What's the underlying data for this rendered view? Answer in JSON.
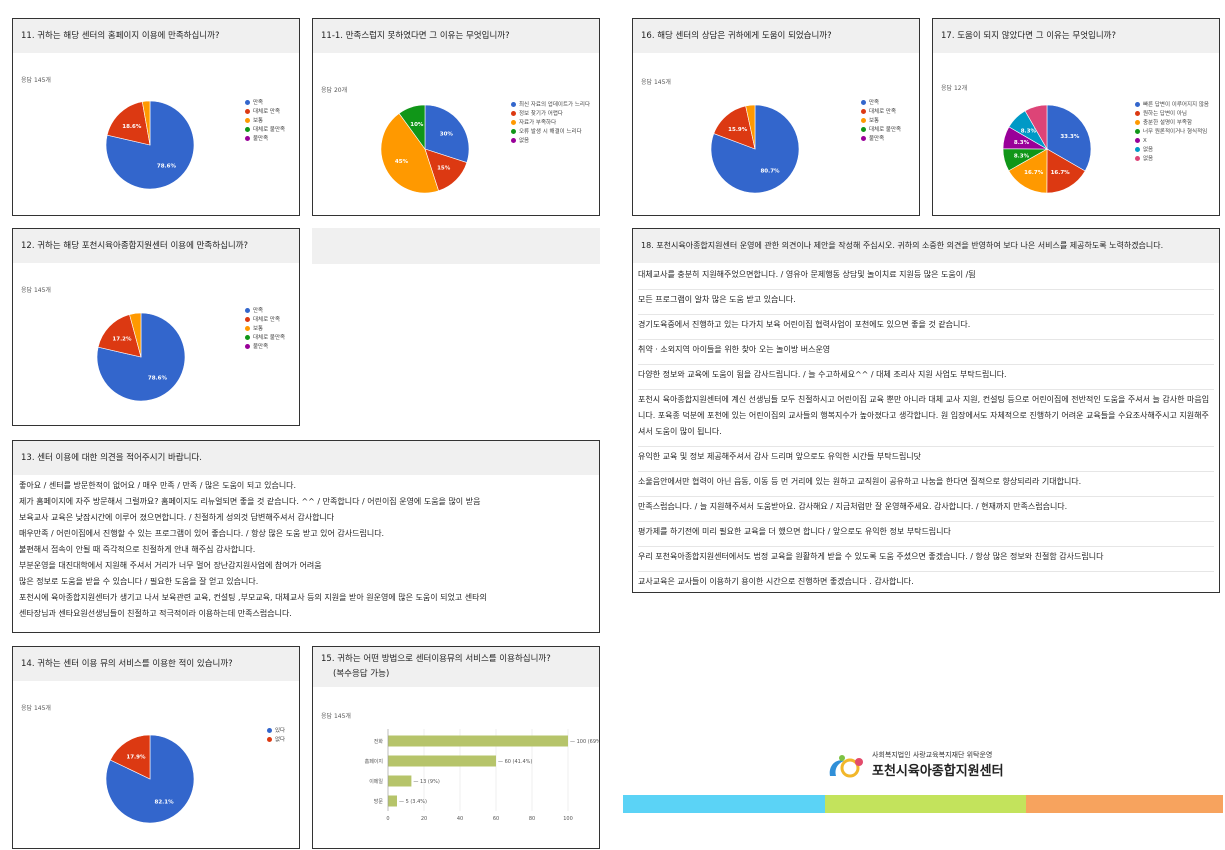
{
  "q11": {
    "title": "11. 귀하는 해당 센터의 홈페이지 이용에 만족하십니까?",
    "responses": "응답 145개",
    "legend": [
      "만족",
      "대체로 만족",
      "보통",
      "대체로 불만족",
      "불만족"
    ],
    "labels": [
      "78.6%",
      "18.6%"
    ]
  },
  "q11_1": {
    "title": "11-1. 만족스럽지 못하였다면 그 이유는 무엇입니까?",
    "responses": "응답 20개",
    "legend": [
      "최신 자료의 업데이트가 느리다",
      "정보 찾기가 어렵다",
      "자료가 부족하다",
      "오류 발생 시 해결이 느리다",
      "없음"
    ],
    "labels": [
      "30%",
      "15%",
      "45%",
      "10%"
    ]
  },
  "q16": {
    "title": "16. 해당 센터의 상담은 귀하에게 도움이 되었습니까?",
    "responses": "응답 145개",
    "legend": [
      "만족",
      "대체로 만족",
      "보통",
      "대체로 불만족",
      "불만족"
    ],
    "labels": [
      "80.7%",
      "15.9%"
    ]
  },
  "q17": {
    "title": "17. 도움이 되지 않았다면 그 이유는 무엇입니까?",
    "responses": "응답 12개",
    "legend": [
      "빠른 답변이 이루어지지 않음",
      "원하는 답변이 아님",
      "충분한 설명이 부족함",
      "너무 원론적이거나 형식적임",
      "X",
      "없음",
      "없음"
    ],
    "labels": [
      "33.3%",
      "16.7%",
      "16.7%",
      "8.3%",
      "8.3%",
      "8.3%"
    ]
  },
  "q12": {
    "title": "12. 귀하는 해당 포천시육아종합지원센터 이용에 만족하십니까?",
    "responses": "응답 145개",
    "legend": [
      "만족",
      "대체로 만족",
      "보통",
      "대체로 불만족",
      "불만족"
    ],
    "labels": [
      "78.6%",
      "17.2%"
    ]
  },
  "q13": {
    "title": "13. 센터 이용에 대한 의견을 적어주시기 바랍니다.",
    "lines": [
      "좋아요 / 센터를 방문한적이 없어요 / 매우 만족 / 만족 / 많은 도움이 되고 있습니다.",
      "제가 홈페이지에 자주 방문해서 그럴까요? 홈페이지도 리뉴얼되면 좋을 것 같습니다. ^^ / 만족합니다 / 어린이집 운영에 도움을 많이 받음",
      "보육교사 교육은 낮잠시간에 이루어 졌으면합니다. / 친절하게 성의것 답변해주셔서 감사합니다",
      "매우만족 / 어린이집에서 진행할 수 있는 프로그램이 있어 좋습니다. / 항상 많은 도움 받고 있어 감사드립니다.",
      "불편해서 접속이 안될 때 즉각적으로 친절하게 안내 해주심 감사합니다.",
      "부분운영을 대진대학에서 지원해 주셔서 거리가 너무 멀어 장난감지원사업에 참여가 어려움",
      "많은 정보로 도움을 받을 수 있습니다 / 필요한 도움을 잘 얻고 있습니다.",
      "포천시에 육아종합지원센터가 생기고 나서 보육관련 교육, 컨설팅 ,부모교육, 대체교사 등의 지원을 받아 원운영에 많은 도움이 되었고 센타의",
      "센타장님과 센타요원선생님들이 친절하고 적극적이라 이용하는데 만족스럽습니다."
    ]
  },
  "q14": {
    "title": "14. 귀하는 센터 이용 뮤의 서비스를 이용한 적이 있습니까?",
    "responses": "응답 145개",
    "legend": [
      "있다",
      "없다"
    ],
    "labels": [
      "82.1%",
      "17.9%"
    ]
  },
  "q15": {
    "title": "15. 귀하는 어떤 방법으로 센터이용뮤의 서비스를 이용하십니까?",
    "subtitle": "(복수응답 가능)",
    "responses": "응답 145개"
  },
  "q18": {
    "title": "18. 포천시육아종합지원센터 운영에 관한 의견이나 제안을 작성해 주십시오. 귀하의 소중한 의견을 반영하여 보다 나은 서비스를 제공하도록 노력하겠습니다.",
    "answers": [
      "대체교사를 충분히 지원해주었으면합니다. / 영유아 문제행동 상담및 놀이치료 지원등 많은 도움이 /됨",
      "모든 프로그램이 알차 많은 도움 받고 있습니다.",
      "경기도육중에서 진행하고 있는 다가치 보육 어린이집 협력사업이 포천에도 있으면 좋을 것 같습니다.",
      "취약 · 소외지역 아이들을 위한 찾아 오는 놀이방 버스운영",
      "다양한 정보와 교육에 도움이 됨을 감사드립니다. / 늘 수고하세요^^ / 대체 조리사 지원 사업도 부탁드립니다.",
      "포천시 육아종합지원센터에 계신 선생님들 모두 친절하시고 어린이집 교육 뿐만 아니라 대체 교사 지원, 컨설팅 등으로 어린이집에 전반적인 도움을 주셔서 늘 감사한 마음입니다. 포육종 덕분에 포천에 있는 어린이집의 교사들의 행복지수가 높아졌다고 생각합니다. 원 입장에서도 자체적으로 진행하기 어려운 교육들을 수요조사해주시고 지원해주셔서 도움이 많이 됩니다.",
      "유익한 교육 및 정보 제공해주셔서 감사 드리며 앞으로도 유익한 시간들 부탁드립니닷",
      "소울음안에서만 협력이 아닌 읍동, 이동 등 먼 거리에 있는 원하고 교직원이 공유하고 나눔을 한다면 질적으로 향상되리라 기대합니다.",
      "만족스럽습니다. / 늘 지원해주셔서 도움받아요. 감사해요 / 지금처럼만 잘 운영해주세요. 감사합니다. / 현재까지 만족스럽습니다.",
      "평가제를 하기전에 미리 필요한 교육을 더 했으면 합니다 / 앞으로도 유익한 정보 부탁드립니다",
      "우리 포천육아종합지원센터에서도 법정 교육을 원활하게 받을 수 있도록 도움 주셨으면 좋겠습니다. / 항상 많은 정보와 친절함 감사드립니다",
      "교사교육은 교사들이 이용하기 용이한 시간으로 진행하면 좋겠습니다 . 감사합니다."
    ]
  },
  "logo": {
    "subtitle": "사회복지법인 사랑교육복지재단 위탁운영",
    "name": "포천시육아종합지원센터"
  },
  "colors": {
    "blue": "#3366cc",
    "red": "#dc3912",
    "orange": "#ff9900",
    "green": "#109618",
    "purple": "#990099",
    "cyan": "#0099c6",
    "pink": "#dd4477",
    "bar": "#b6c46a"
  },
  "chart_data": [
    {
      "type": "pie",
      "title": "11. 귀하는 해당 센터의 홈페이지 이용에 만족하십니까?",
      "categories": [
        "만족",
        "대체로 만족",
        "보통",
        "대체로 불만족",
        "불만족"
      ],
      "values": [
        78.6,
        18.6,
        2.8,
        0,
        0
      ]
    },
    {
      "type": "pie",
      "title": "11-1. 만족스럽지 못하였다면 그 이유는 무엇입니까?",
      "categories": [
        "최신 자료의 업데이트가 느리다",
        "정보 찾기가 어렵다",
        "자료가 부족하다",
        "오류 발생 시 해결이 느리다",
        "없음"
      ],
      "values": [
        30,
        15,
        45,
        10,
        0
      ]
    },
    {
      "type": "pie",
      "title": "16. 해당 센터의 상담은 귀하에게 도움이 되었습니까?",
      "categories": [
        "만족",
        "대체로 만족",
        "보통",
        "대체로 불만족",
        "불만족"
      ],
      "values": [
        80.7,
        15.9,
        3.4,
        0,
        0
      ]
    },
    {
      "type": "pie",
      "title": "17. 도움이 되지 않았다면 그 이유는 무엇입니까?",
      "categories": [
        "빠른 답변이 이루어지지 않음",
        "원하는 답변이 아님",
        "충분한 설명이 부족함",
        "너무 원론적이거나 형식적임",
        "X",
        "없음",
        "없음"
      ],
      "values": [
        33.3,
        16.7,
        16.7,
        8.3,
        8.3,
        8.3,
        8.3
      ]
    },
    {
      "type": "pie",
      "title": "12. 귀하는 해당 포천시육아종합지원센터 이용에 만족하십니까?",
      "categories": [
        "만족",
        "대체로 만족",
        "보통",
        "대체로 불만족",
        "불만족"
      ],
      "values": [
        78.6,
        17.2,
        4.2,
        0,
        0
      ]
    },
    {
      "type": "pie",
      "title": "14. 귀하는 센터 이용 뮤의 서비스를 이용한 적이 있습니까?",
      "categories": [
        "있다",
        "없다"
      ],
      "values": [
        82.1,
        17.9
      ]
    },
    {
      "type": "bar",
      "orientation": "horizontal",
      "title": "15. 귀하는 어떤 방법으로 센터이용뮤의 서비스를 이용하십니까?",
      "categories": [
        "전화",
        "홈페이지",
        "이메일",
        "방문"
      ],
      "values": [
        100,
        60,
        13,
        5
      ],
      "data_labels": [
        "100 (69%)",
        "60 (41.4%)",
        "13 (9%)",
        "5 (3.4%)"
      ],
      "xticks": [
        "0",
        "20",
        "40",
        "60",
        "80",
        "100"
      ],
      "xlim": [
        0,
        100
      ]
    }
  ]
}
